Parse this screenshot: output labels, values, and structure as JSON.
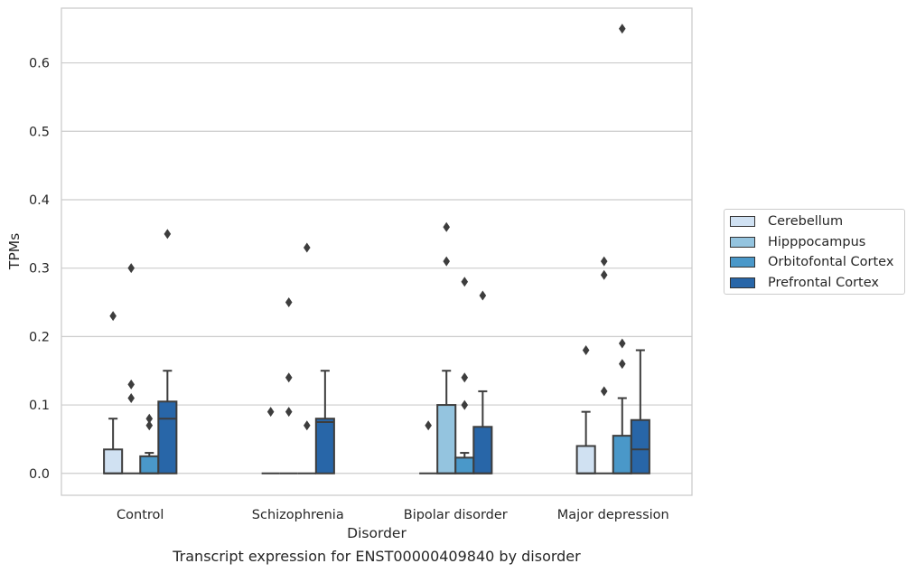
{
  "chart_data": {
    "type": "box",
    "caption": "Transcript expression for ENST00000409840 by disorder",
    "xlabel": "Disorder",
    "ylabel": "TPMs",
    "ylim": [
      -0.032,
      0.68
    ],
    "yticks": [
      "0.0",
      "0.1",
      "0.2",
      "0.3",
      "0.4",
      "0.5",
      "0.6"
    ],
    "grid": "horizontal",
    "legend_position": "right",
    "categories": [
      "Control",
      "Schizophrenia",
      "Bipolar disorder",
      "Major depression"
    ],
    "series": [
      {
        "name": "Cerebellum",
        "color": "#d0e1f2",
        "boxes": [
          {
            "q1": 0.0,
            "median": 0.0,
            "q3": 0.035,
            "whisker_low": 0.0,
            "whisker_high": 0.08,
            "outliers": [
              0.23
            ]
          },
          {
            "q1": 0.0,
            "median": 0.0,
            "q3": 0.0,
            "whisker_low": 0.0,
            "whisker_high": 0.0,
            "outliers": [
              0.09
            ]
          },
          {
            "q1": 0.0,
            "median": 0.0,
            "q3": 0.0,
            "whisker_low": 0.0,
            "whisker_high": 0.0,
            "outliers": [
              0.07
            ]
          },
          {
            "q1": 0.0,
            "median": 0.0,
            "q3": 0.04,
            "whisker_low": 0.0,
            "whisker_high": 0.09,
            "outliers": [
              0.18
            ]
          }
        ]
      },
      {
        "name": "Hipppocampus",
        "color": "#94c4df",
        "boxes": [
          {
            "q1": 0.0,
            "median": 0.0,
            "q3": 0.0,
            "whisker_low": 0.0,
            "whisker_high": 0.0,
            "outliers": [
              0.11,
              0.13,
              0.3
            ]
          },
          {
            "q1": 0.0,
            "median": 0.0,
            "q3": 0.0,
            "whisker_low": 0.0,
            "whisker_high": 0.0,
            "outliers": [
              0.09,
              0.14,
              0.25
            ]
          },
          {
            "q1": 0.0,
            "median": 0.0,
            "q3": 0.1,
            "whisker_low": 0.0,
            "whisker_high": 0.15,
            "outliers": [
              0.31,
              0.36
            ]
          },
          {
            "q1": 0.0,
            "median": 0.0,
            "q3": 0.0,
            "whisker_low": 0.0,
            "whisker_high": 0.0,
            "outliers": [
              0.12,
              0.29,
              0.31
            ]
          }
        ]
      },
      {
        "name": "Orbitofontal Cortex",
        "color": "#4a98c9",
        "boxes": [
          {
            "q1": 0.0,
            "median": 0.0,
            "q3": 0.025,
            "whisker_low": 0.0,
            "whisker_high": 0.03,
            "outliers": [
              0.07,
              0.08
            ]
          },
          {
            "q1": 0.0,
            "median": 0.0,
            "q3": 0.0,
            "whisker_low": 0.0,
            "whisker_high": 0.0,
            "outliers": [
              0.07,
              0.33
            ]
          },
          {
            "q1": 0.0,
            "median": 0.0,
            "q3": 0.023,
            "whisker_low": 0.0,
            "whisker_high": 0.03,
            "outliers": [
              0.1,
              0.14,
              0.28
            ]
          },
          {
            "q1": 0.0,
            "median": 0.0,
            "q3": 0.055,
            "whisker_low": 0.0,
            "whisker_high": 0.11,
            "outliers": [
              0.16,
              0.19,
              0.65
            ]
          }
        ]
      },
      {
        "name": "Prefrontal Cortex",
        "color": "#2866a8",
        "boxes": [
          {
            "q1": 0.0,
            "median": 0.08,
            "q3": 0.105,
            "whisker_low": 0.0,
            "whisker_high": 0.15,
            "outliers": [
              0.35
            ]
          },
          {
            "q1": 0.0,
            "median": 0.075,
            "q3": 0.08,
            "whisker_low": 0.0,
            "whisker_high": 0.15,
            "outliers": []
          },
          {
            "q1": 0.0,
            "median": 0.0,
            "q3": 0.068,
            "whisker_low": 0.0,
            "whisker_high": 0.12,
            "outliers": [
              0.26
            ]
          },
          {
            "q1": 0.0,
            "median": 0.035,
            "q3": 0.078,
            "whisker_low": 0.0,
            "whisker_high": 0.18,
            "outliers": []
          }
        ]
      }
    ]
  }
}
